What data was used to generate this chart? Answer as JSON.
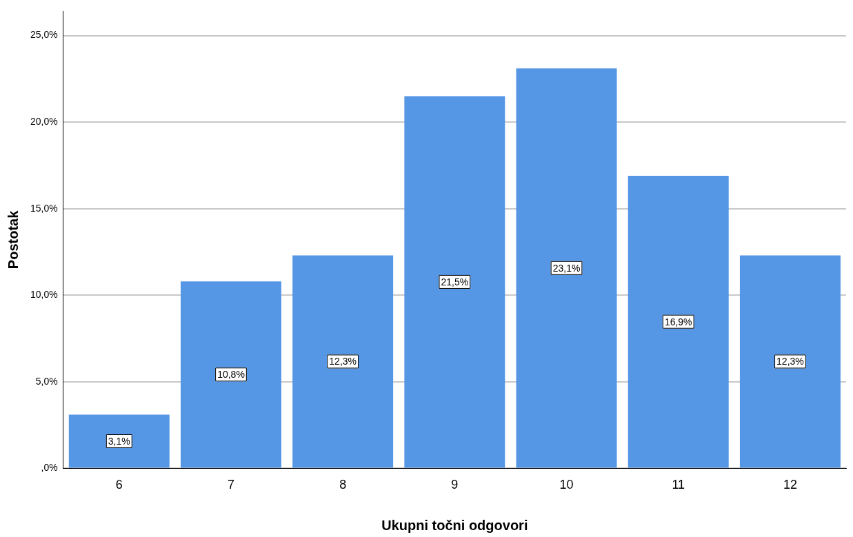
{
  "chart_data": {
    "type": "bar",
    "xlabel": "Ukupni točni odgovori",
    "ylabel": "Postotak",
    "categories": [
      "6",
      "7",
      "8",
      "9",
      "10",
      "11",
      "12"
    ],
    "values": [
      3.1,
      10.8,
      12.3,
      21.5,
      23.1,
      16.9,
      12.3
    ],
    "value_labels": [
      "3,1%",
      "10,8%",
      "12,3%",
      "21,5%",
      "23,1%",
      "16,9%",
      "12,3%"
    ],
    "color": "#5596e5",
    "ylim": [
      0,
      26.4
    ],
    "yticks": [
      {
        "value": 0,
        "label": ",0%"
      },
      {
        "value": 5,
        "label": "5,0%"
      },
      {
        "value": 10,
        "label": "10,0%"
      },
      {
        "value": 15,
        "label": "15,0%"
      },
      {
        "value": 20,
        "label": "20,0%"
      },
      {
        "value": 25,
        "label": "25,0%"
      }
    ],
    "grid": "y"
  }
}
